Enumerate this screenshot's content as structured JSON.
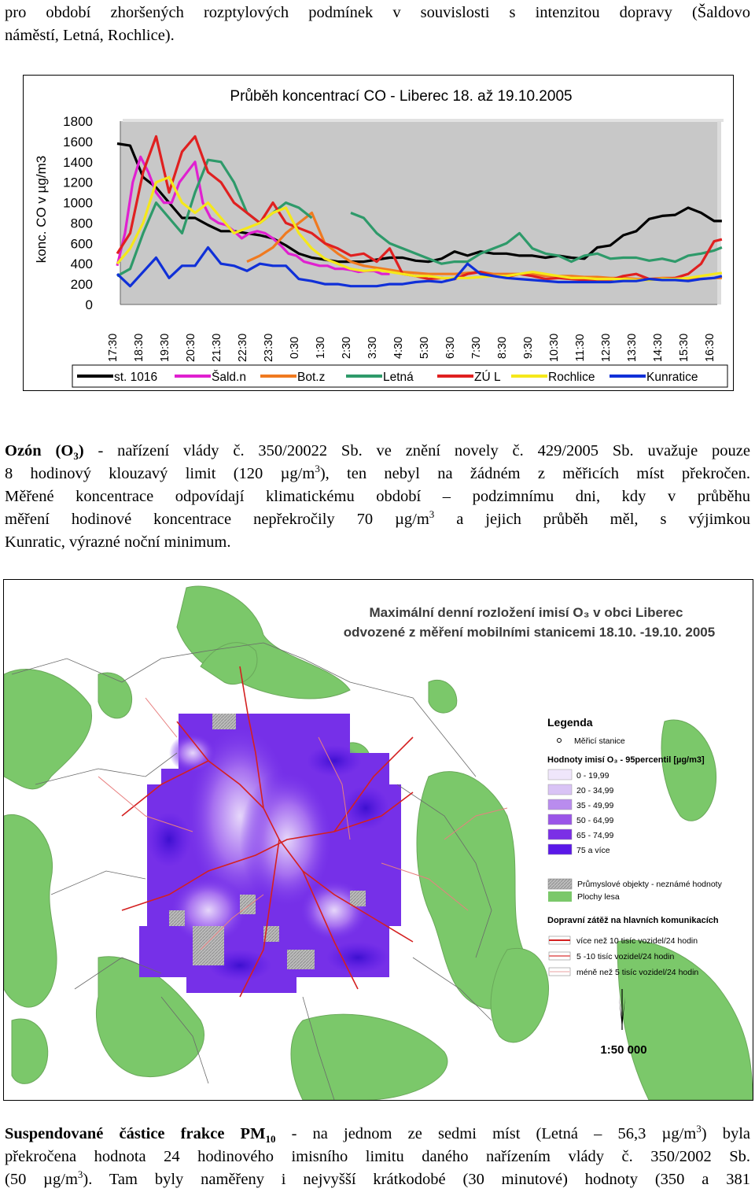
{
  "text": {
    "p1_l1": "pro období zhoršených rozptylových podmínek v souvislosti s intenzitou dopravy (Šaldovo",
    "p1_l2": "náměstí, Letná, Rochlice).",
    "p2_l1_a": "Ozón (O",
    "p2_l1_sub": "3",
    "p2_l1_b": ")",
    "p2_l1_c": " - nařízení vlády č. 350/20022 Sb. ve znění novely č. 429/2005 Sb. uvažuje pouze",
    "p2_l2_a": "8 hodinový klouzavý limit (120 µg/m",
    "p2_l2_sup": "3",
    "p2_l2_b": "), ten nebyl na žádném z měřicích míst překročen.",
    "p2_l3": "Měřené koncentrace odpovídají klimatickému období – podzimnímu dni, kdy v průběhu",
    "p2_l4_a": "měření hodinové koncentrace nepřekročily 70 µg/m",
    "p2_l4_sup": "3",
    "p2_l4_b": " a jejich průběh měl, s výjimkou",
    "p2_l5": "Kunratic, výrazné noční minimum.",
    "p3_l1_a": "Suspendované částice frakce PM",
    "p3_l1_sub": "10",
    "p3_l1_b": " - na jednom ze sedmi míst (Letná – 56,3 µg/m",
    "p3_l1_sup": "3",
    "p3_l1_c": ") byla",
    "p3_l2": "překročena hodnota 24 hodinového imisního limitu daného nařízením vlády č. 350/2002 Sb.",
    "p3_l3_a": "(50 µg/m",
    "p3_l3_sup": "3",
    "p3_l3_b": "). Tam byly naměřeny i nejvyšší krátkodobé (30 minutové) hodnoty (350 a 381"
  },
  "map": {
    "title_l1": "Maximální denní rozložení imisí O₃ v obci Liberec",
    "title_l2": "odvozené z měření mobilními stanicemi 18.10. -19.10. 2005",
    "legend_title": "Legenda",
    "station_label": "Měřicí stanice",
    "values_title": "Hodnoty imisí O₃ - 95percentil [µg/m3]",
    "classes": [
      {
        "label": "0 - 19,99",
        "color": "#efe6fb"
      },
      {
        "label": "20 - 34,99",
        "color": "#d9c3f5"
      },
      {
        "label": "35 - 49,99",
        "color": "#b98cee"
      },
      {
        "label": "50 - 64,99",
        "color": "#9a55e8"
      },
      {
        "label": "65 - 74,99",
        "color": "#7b2fe6"
      },
      {
        "label": "75 a více",
        "color": "#5a18e8"
      }
    ],
    "industrial_label": "Průmyslové objekty - neznámé hodnoty",
    "forest_label": "Plochy lesa",
    "traffic_title": "Dopravní zátěž na hlavních komunikacích",
    "traffic": [
      {
        "label": "více než 10 tisíc vozidel/24 hodin",
        "color": "#d42020"
      },
      {
        "label": "5 -10 tisíc vozidel/24 hodin",
        "color": "#e88080"
      },
      {
        "label": "méně než 5 tisíc vozidel/24 hodin",
        "color": "#f5d0d0"
      }
    ],
    "scale": "1:50 000"
  },
  "chart_data": {
    "type": "line",
    "title": "Průběh koncentrací CO - Liberec 18. až 19.10.2005",
    "ylabel": "konc. CO v µg/m3",
    "xlabel": "",
    "ylim": [
      0,
      1800
    ],
    "yticks": [
      0,
      200,
      400,
      600,
      800,
      1000,
      1200,
      1400,
      1600,
      1800
    ],
    "grid": false,
    "legend_position": "bottom",
    "x": [
      "17:30",
      "18:30",
      "19:30",
      "20:30",
      "21:30",
      "22:30",
      "23:30",
      "0:30",
      "1:30",
      "2:30",
      "3:30",
      "4:30",
      "5:30",
      "6:30",
      "7:30",
      "8:30",
      "9:30",
      "10:30",
      "11:30",
      "12:30",
      "13:30",
      "14:30",
      "15:30",
      "16:30"
    ],
    "series": [
      {
        "name": "st. 1016",
        "color": "#000000",
        "x": [
          0,
          0.5,
          1,
          1.5,
          2,
          2.5,
          3,
          3.5,
          4,
          4.5,
          5,
          5.5,
          6,
          6.5,
          7,
          7.5,
          8,
          8.5,
          9,
          9.5,
          10,
          10.5,
          11,
          11.5,
          12,
          12.5,
          13,
          13.5,
          14,
          14.5,
          15,
          15.5,
          16,
          16.5,
          17,
          17.5,
          18,
          18.5,
          19,
          19.5,
          20,
          20.5,
          21,
          21.5,
          22,
          22.5,
          23,
          23.3
        ],
        "y": [
          1580,
          1560,
          1250,
          1150,
          1000,
          850,
          850,
          780,
          720,
          720,
          700,
          680,
          650,
          580,
          500,
          460,
          440,
          420,
          420,
          420,
          440,
          460,
          460,
          430,
          420,
          450,
          520,
          480,
          520,
          500,
          500,
          480,
          480,
          460,
          480,
          460,
          450,
          560,
          580,
          680,
          720,
          840,
          870,
          880,
          950,
          900,
          820,
          820
        ]
      },
      {
        "name": "Šald.n",
        "color": "#e020d0",
        "x": [
          0,
          0.3,
          0.6,
          0.9,
          1.2,
          1.5,
          1.8,
          2.1,
          2.4,
          2.7,
          3,
          3.3,
          3.6,
          3.9,
          4.2,
          4.5,
          4.8,
          5.1,
          5.4,
          5.7,
          6,
          6.3,
          6.6,
          6.9,
          7.2,
          7.5,
          7.8,
          8.1,
          8.4,
          8.7,
          9,
          9.3,
          9.6,
          9.9,
          10.2,
          10.5
        ],
        "y": [
          380,
          700,
          1200,
          1450,
          1300,
          1100,
          1000,
          1000,
          1200,
          1300,
          1400,
          1000,
          850,
          800,
          780,
          720,
          650,
          700,
          720,
          700,
          650,
          580,
          500,
          480,
          420,
          400,
          380,
          380,
          350,
          350,
          340,
          320,
          330,
          330,
          300,
          300
        ]
      },
      {
        "name": "Bot.z",
        "color": "#f07a20",
        "x": [
          5,
          5.5,
          6,
          6.5,
          7,
          7.5,
          8,
          8.5,
          9,
          9.5,
          10,
          10.5,
          11,
          11.5,
          12,
          12.5,
          13,
          13.5,
          14,
          14.5,
          15,
          15.5,
          16,
          16.5,
          17,
          17.5,
          18,
          18.5,
          19,
          19.5,
          20,
          20.5,
          21,
          21.5,
          22,
          22.5,
          23,
          23.3
        ],
        "y": [
          420,
          480,
          560,
          700,
          800,
          900,
          600,
          500,
          420,
          380,
          360,
          340,
          320,
          310,
          300,
          300,
          300,
          310,
          320,
          300,
          300,
          300,
          300,
          280,
          280,
          280,
          270,
          270,
          260,
          260,
          250,
          250,
          260,
          260,
          250,
          250,
          260,
          260
        ]
      },
      {
        "name": "Letná",
        "color": "#2e9a6a",
        "x": [
          0,
          0.5,
          1,
          1.5,
          2,
          2.5,
          3,
          3.5,
          4,
          4.5,
          5,
          5.5,
          6,
          6.5,
          7,
          7.5,
          8,
          8.5,
          9,
          9.5,
          10,
          10.5,
          11,
          11.5,
          12,
          12.5,
          13,
          13.5,
          14,
          14.5,
          15,
          15.5,
          16,
          16.5,
          17,
          17.5,
          18,
          18.5,
          19,
          19.5,
          20,
          20.5,
          21,
          21.5,
          22,
          22.5,
          23,
          23.3
        ],
        "y": [
          280,
          350,
          700,
          1000,
          850,
          700,
          1100,
          1420,
          1400,
          1200,
          900,
          800,
          900,
          1000,
          950,
          850,
          null,
          null,
          900,
          850,
          700,
          600,
          550,
          500,
          450,
          400,
          420,
          420,
          500,
          550,
          600,
          700,
          550,
          500,
          480,
          420,
          480,
          500,
          450,
          460,
          460,
          430,
          450,
          420,
          480,
          500,
          530,
          560
        ]
      },
      {
        "name": "ZÚ L",
        "color": "#e02020",
        "x": [
          0,
          0.5,
          1,
          1.5,
          2,
          2.5,
          3,
          3.5,
          4,
          4.5,
          5,
          5.5,
          6,
          6.5,
          7,
          7.5,
          8,
          8.5,
          9,
          9.5,
          10,
          10.5,
          11,
          11.5,
          12,
          12.5,
          13,
          13.5,
          14,
          14.5,
          15,
          15.5,
          16,
          16.5,
          17,
          17.5,
          18,
          18.5,
          19,
          19.5,
          20,
          20.5,
          21,
          21.5,
          22,
          22.5,
          23,
          23.3
        ],
        "y": [
          500,
          700,
          1300,
          1650,
          1100,
          1500,
          1650,
          1300,
          1200,
          1000,
          900,
          800,
          1000,
          800,
          750,
          700,
          600,
          550,
          480,
          500,
          420,
          550,
          300,
          280,
          250,
          260,
          250,
          300,
          320,
          280,
          270,
          300,
          280,
          250,
          260,
          250,
          240,
          240,
          240,
          280,
          300,
          250,
          250,
          260,
          300,
          400,
          620,
          640
        ]
      },
      {
        "name": "Rochlice",
        "color": "#f5e81a",
        "x": [
          0,
          0.5,
          1,
          1.5,
          2,
          2.5,
          3,
          3.5,
          4,
          4.5,
          5,
          5.5,
          6,
          6.5,
          7,
          7.5,
          8,
          8.5,
          9,
          9.5,
          10,
          10.5,
          11,
          11.5,
          12,
          12.5,
          13,
          13.5,
          14,
          14.5,
          15,
          15.5,
          16,
          16.5,
          17,
          17.5,
          18,
          18.5,
          19,
          19.5,
          20,
          20.5,
          21,
          21.5,
          22,
          22.5,
          23,
          23.3
        ],
        "y": [
          400,
          550,
          800,
          1200,
          1250,
          1000,
          900,
          1000,
          850,
          700,
          750,
          800,
          900,
          950,
          700,
          550,
          450,
          400,
          350,
          330,
          340,
          320,
          300,
          280,
          280,
          260,
          260,
          260,
          270,
          280,
          280,
          300,
          320,
          300,
          280,
          260,
          260,
          250,
          250,
          250,
          240,
          240,
          250,
          250,
          260,
          280,
          300,
          310
        ]
      },
      {
        "name": "Kunratice",
        "color": "#1030d8",
        "x": [
          0,
          0.5,
          1,
          1.5,
          2,
          2.5,
          3,
          3.5,
          4,
          4.5,
          5,
          5.5,
          6,
          6.5,
          7,
          7.5,
          8,
          8.5,
          9,
          9.5,
          10,
          10.5,
          11,
          11.5,
          12,
          12.5,
          13,
          13.5,
          14,
          14.5,
          15,
          15.5,
          16,
          16.5,
          17,
          17.5,
          18,
          18.5,
          19,
          19.5,
          20,
          20.5,
          21,
          21.5,
          22,
          22.5,
          23,
          23.3
        ],
        "y": [
          300,
          180,
          320,
          460,
          260,
          380,
          380,
          560,
          400,
          380,
          330,
          400,
          380,
          380,
          250,
          230,
          200,
          200,
          180,
          180,
          180,
          200,
          200,
          220,
          230,
          220,
          250,
          400,
          300,
          280,
          260,
          250,
          240,
          230,
          220,
          220,
          220,
          220,
          220,
          230,
          230,
          250,
          240,
          240,
          230,
          250,
          260,
          280
        ]
      }
    ]
  }
}
